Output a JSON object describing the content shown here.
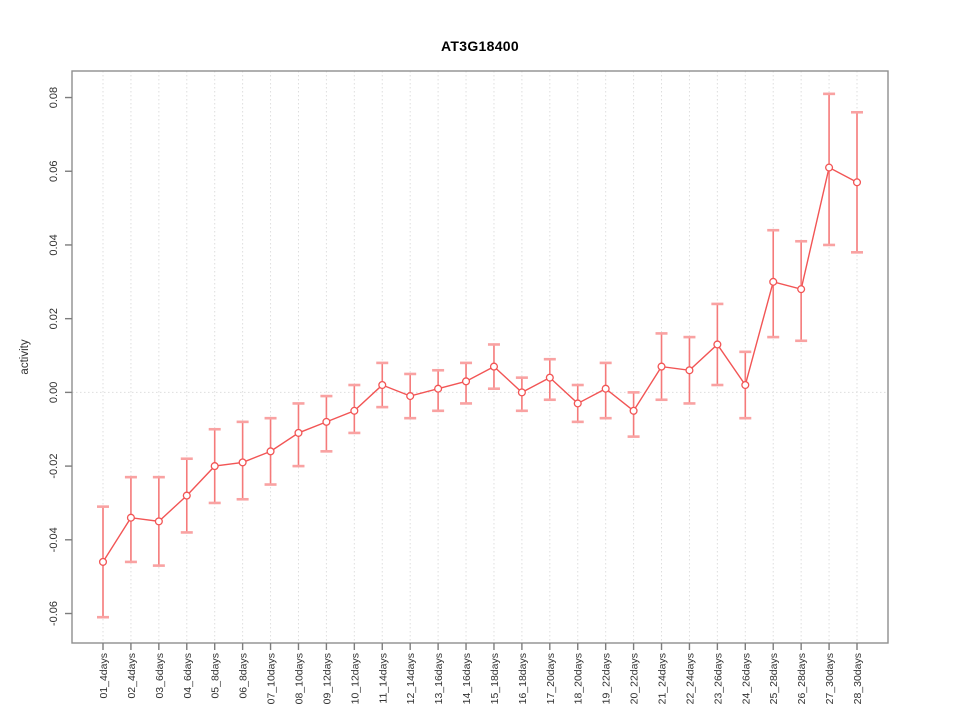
{
  "chart_data": {
    "type": "line",
    "title": "AT3G18400",
    "ylabel": "activity",
    "xlabel": "",
    "legend_position": "none",
    "marker": "open-circle",
    "error_bars": true,
    "categories": [
      "01_4days",
      "02_4days",
      "03_6days",
      "04_6days",
      "05_8days",
      "06_8days",
      "07_10days",
      "08_10days",
      "09_12days",
      "10_12days",
      "11_14days",
      "12_14days",
      "13_16days",
      "14_16days",
      "15_18days",
      "16_18days",
      "17_20days",
      "18_20days",
      "19_22days",
      "20_22days",
      "21_24days",
      "22_24days",
      "23_26days",
      "24_26days",
      "25_28days",
      "26_28days",
      "27_30days",
      "28_30days"
    ],
    "series": [
      {
        "name": "activity",
        "values": [
          -0.046,
          -0.034,
          -0.035,
          -0.028,
          -0.02,
          -0.019,
          -0.016,
          -0.011,
          -0.008,
          -0.005,
          0.002,
          -0.001,
          0.001,
          0.003,
          0.007,
          0.0,
          0.004,
          -0.003,
          0.001,
          -0.005,
          0.007,
          0.006,
          0.013,
          0.002,
          0.03,
          0.028,
          0.061,
          0.057
        ],
        "ci_low": [
          -0.061,
          -0.046,
          -0.047,
          -0.038,
          -0.03,
          -0.029,
          -0.025,
          -0.02,
          -0.016,
          -0.011,
          -0.004,
          -0.007,
          -0.005,
          -0.003,
          0.001,
          -0.005,
          -0.002,
          -0.008,
          -0.007,
          -0.012,
          -0.002,
          -0.003,
          0.002,
          -0.007,
          0.015,
          0.014,
          0.04,
          0.038
        ],
        "ci_high": [
          -0.031,
          -0.023,
          -0.023,
          -0.018,
          -0.01,
          -0.008,
          -0.007,
          -0.003,
          -0.001,
          0.002,
          0.008,
          0.005,
          0.006,
          0.008,
          0.013,
          0.004,
          0.009,
          0.002,
          0.008,
          0.0,
          0.016,
          0.015,
          0.024,
          0.011,
          0.044,
          0.041,
          0.081,
          0.076
        ]
      }
    ],
    "yticks": [
      0.08,
      0.06,
      0.04,
      0.02,
      0.0,
      -0.02,
      -0.04,
      -0.06
    ],
    "ylim": [
      -0.068,
      0.0872
    ],
    "grid": {
      "vertical_per_category": true,
      "horizontal_at": 0,
      "style": "dotted"
    },
    "colors": {
      "series": "#f25555",
      "error_bar": "#f57a7a",
      "error_cap": "#f9a2a2",
      "marker_fill": "#ffffff",
      "grid": "#dedede",
      "box": "#8f8f8f",
      "tick": "#7d7d7d",
      "tick_label": "#303030",
      "title": "#000000",
      "background": "#ffffff"
    }
  }
}
